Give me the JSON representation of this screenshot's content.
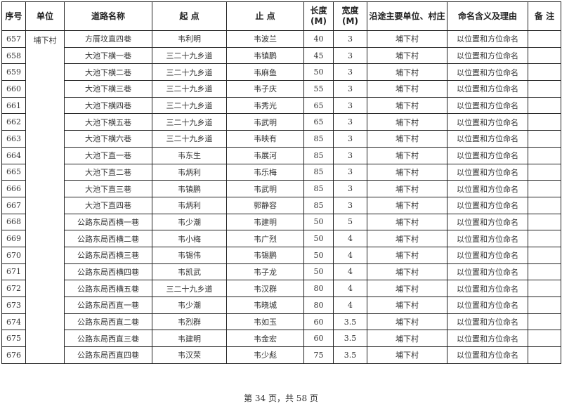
{
  "headers": [
    "序号",
    "单位",
    "道路名称",
    "起 点",
    "止 点",
    "长度\n(M)",
    "宽度\n(M)",
    "沿途主要单位、村庄",
    "命名含义及理由",
    "备 注"
  ],
  "unit": "埔下村",
  "rows": [
    [
      "657",
      "方厝坟直四巷",
      "韦利明",
      "韦波兰",
      "40",
      "3",
      "埔下村",
      "以位置和方位命名",
      ""
    ],
    [
      "658",
      "大池下横一巷",
      "三二十九乡道",
      "韦镇鹏",
      "45",
      "3",
      "埔下村",
      "以位置和方位命名",
      ""
    ],
    [
      "659",
      "大池下横二巷",
      "三二十九乡道",
      "韦麻鱼",
      "50",
      "3",
      "埔下村",
      "以位置和方位命名",
      ""
    ],
    [
      "660",
      "大池下横三巷",
      "三二十九乡道",
      "韦子庆",
      "55",
      "3",
      "埔下村",
      "以位置和方位命名",
      ""
    ],
    [
      "661",
      "大池下横四巷",
      "三二十九乡道",
      "韦秀光",
      "65",
      "3",
      "埔下村",
      "以位置和方位命名",
      ""
    ],
    [
      "662",
      "大池下横五巷",
      "三二十九乡道",
      "韦武明",
      "65",
      "3",
      "埔下村",
      "以位置和方位命名",
      ""
    ],
    [
      "663",
      "大池下横六巷",
      "三二十九乡道",
      "韦映有",
      "85",
      "3",
      "埔下村",
      "以位置和方位命名",
      ""
    ],
    [
      "664",
      "大池下直一巷",
      "韦东生",
      "韦展河",
      "85",
      "3",
      "埔下村",
      "以位置和方位命名",
      ""
    ],
    [
      "665",
      "大池下直二巷",
      "韦炳利",
      "韦乐梅",
      "85",
      "3",
      "埔下村",
      "以位置和方位命名",
      ""
    ],
    [
      "666",
      "大池下直三巷",
      "韦镇鹏",
      "韦武明",
      "85",
      "3",
      "埔下村",
      "以位置和方位命名",
      ""
    ],
    [
      "667",
      "大池下直四巷",
      "韦炳利",
      "郭静容",
      "85",
      "3",
      "埔下村",
      "以位置和方位命名",
      ""
    ],
    [
      "668",
      "公路东局西横一巷",
      "韦少潮",
      "韦建明",
      "50",
      "5",
      "埔下村",
      "以位置和方位命名",
      ""
    ],
    [
      "669",
      "公路东局西横二巷",
      "韦小梅",
      "韦广烈",
      "50",
      "4",
      "埔下村",
      "以位置和方位命名",
      ""
    ],
    [
      "670",
      "公路东局西横三巷",
      "韦锡伟",
      "韦锡鹏",
      "50",
      "4",
      "埔下村",
      "以位置和方位命名",
      ""
    ],
    [
      "671",
      "公路东局西横四巷",
      "韦凯武",
      "韦子龙",
      "50",
      "4",
      "埔下村",
      "以位置和方位命名",
      ""
    ],
    [
      "672",
      "公路东局西横五巷",
      "三二十九乡道",
      "韦汉群",
      "80",
      "4",
      "埔下村",
      "以位置和方位命名",
      ""
    ],
    [
      "673",
      "公路东局西直一巷",
      "韦少潮",
      "韦晓城",
      "80",
      "4",
      "埔下村",
      "以位置和方位命名",
      ""
    ],
    [
      "674",
      "公路东局西直二巷",
      "韦烈群",
      "韦如玉",
      "60",
      "3.5",
      "埔下村",
      "以位置和方位命名",
      ""
    ],
    [
      "675",
      "公路东局西直三巷",
      "韦建明",
      "韦金宏",
      "60",
      "3.5",
      "埔下村",
      "以位置和方位命名",
      ""
    ],
    [
      "676",
      "公路东局西直四巷",
      "韦汉荣",
      "韦少彪",
      "75",
      "3.5",
      "埔下村",
      "以位置和方位命名",
      ""
    ]
  ],
  "footer": "第 34 页，共 58 页"
}
